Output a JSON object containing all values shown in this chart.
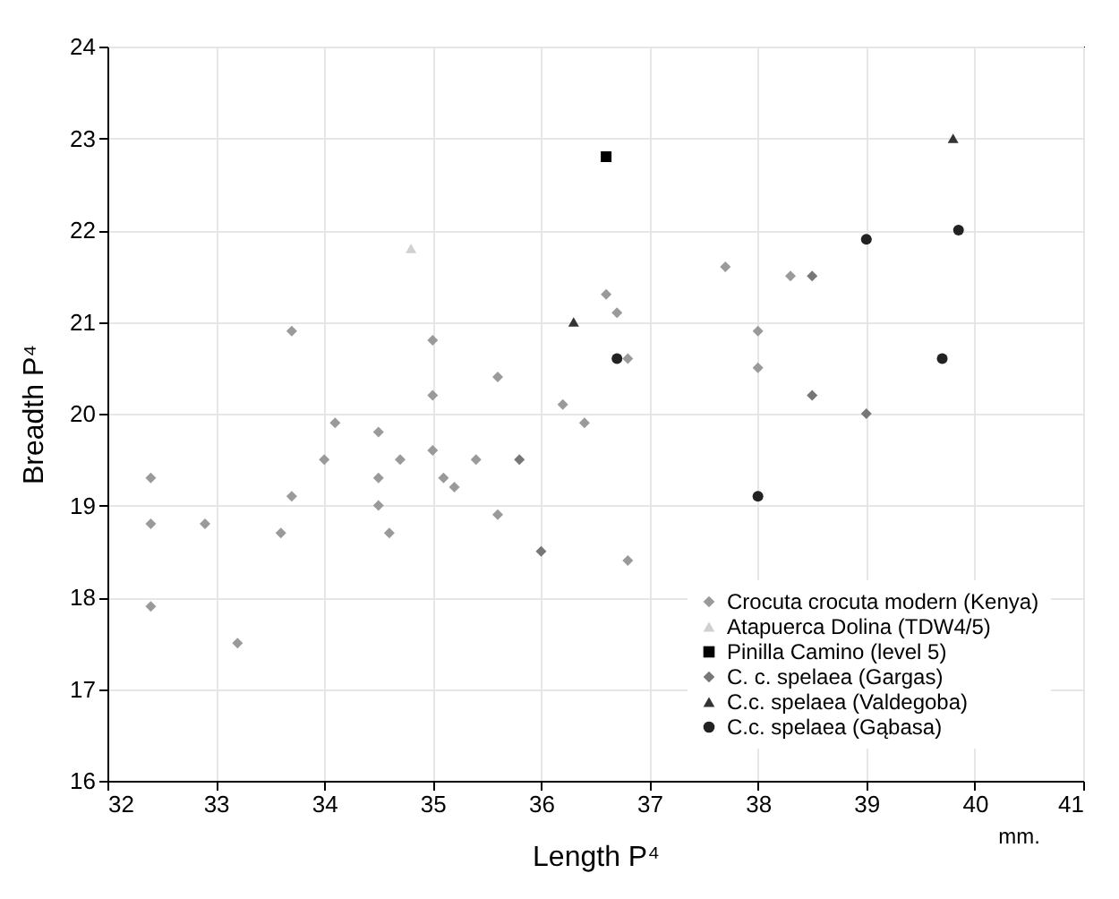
{
  "chart_data": {
    "type": "scatter",
    "xlabel": "Length P⁴",
    "ylabel": "Breadth P⁴",
    "annotations": [
      "mm."
    ],
    "xlim": [
      32,
      41
    ],
    "xticks": [
      32,
      33,
      34,
      35,
      36,
      37,
      38,
      39,
      40,
      41
    ],
    "ylim": [
      16,
      24
    ],
    "yticks": [
      16,
      17,
      18,
      19,
      20,
      21,
      22,
      23,
      24
    ],
    "grid": true,
    "legend": "bottom right",
    "series": [
      {
        "name": "Crocuta crocuta modern (Kenya)",
        "color": "#9a9a9a",
        "marker": "diamond",
        "x": [
          32.4,
          32.4,
          32.4,
          32.9,
          33.2,
          33.6,
          33.7,
          33.7,
          34.0,
          34.1,
          34.5,
          34.5,
          34.5,
          34.6,
          34.7,
          35.0,
          35.0,
          35.0,
          35.1,
          35.2,
          35.4,
          35.6,
          35.6,
          36.2,
          36.4,
          36.6,
          36.7,
          36.8,
          36.8,
          37.7,
          38.0,
          38.0,
          38.3
        ],
        "values": [
          19.3,
          18.8,
          17.9,
          18.8,
          17.5,
          18.7,
          19.1,
          20.9,
          19.5,
          19.9,
          19.8,
          19.3,
          19.0,
          18.7,
          19.5,
          20.8,
          20.2,
          19.6,
          19.3,
          19.2,
          19.5,
          20.4,
          18.9,
          20.1,
          19.9,
          21.3,
          21.1,
          20.6,
          18.4,
          21.6,
          20.9,
          20.5,
          21.5
        ]
      },
      {
        "name": "Atapuerca Dolina (TDW4/5)",
        "color": "#d0d0d0",
        "marker": "triangle",
        "x": [
          34.8
        ],
        "values": [
          21.8
        ]
      },
      {
        "name": "Pinilla Camino (level 5)",
        "color": "#000000",
        "marker": "square",
        "x": [
          36.6
        ],
        "values": [
          22.8
        ]
      },
      {
        "name": "C. c. spelaea (Gargas)",
        "color": "#777777",
        "marker": "diamond",
        "x": [
          35.8,
          36.0,
          38.5,
          38.5,
          39.0
        ],
        "values": [
          19.5,
          18.5,
          21.5,
          20.2,
          20.0
        ]
      },
      {
        "name": "C.c. spelaea (Valdegoba)",
        "color": "#333333",
        "marker": "triangle",
        "x": [
          36.3,
          39.8
        ],
        "values": [
          21.0,
          23.0
        ]
      },
      {
        "name": "C.c. spelaea (Gąbasa)",
        "color": "#222222",
        "marker": "circle",
        "x": [
          36.7,
          38.0,
          39.0,
          39.7,
          39.85
        ],
        "values": [
          20.6,
          19.1,
          21.9,
          20.6,
          22.0
        ]
      }
    ]
  }
}
